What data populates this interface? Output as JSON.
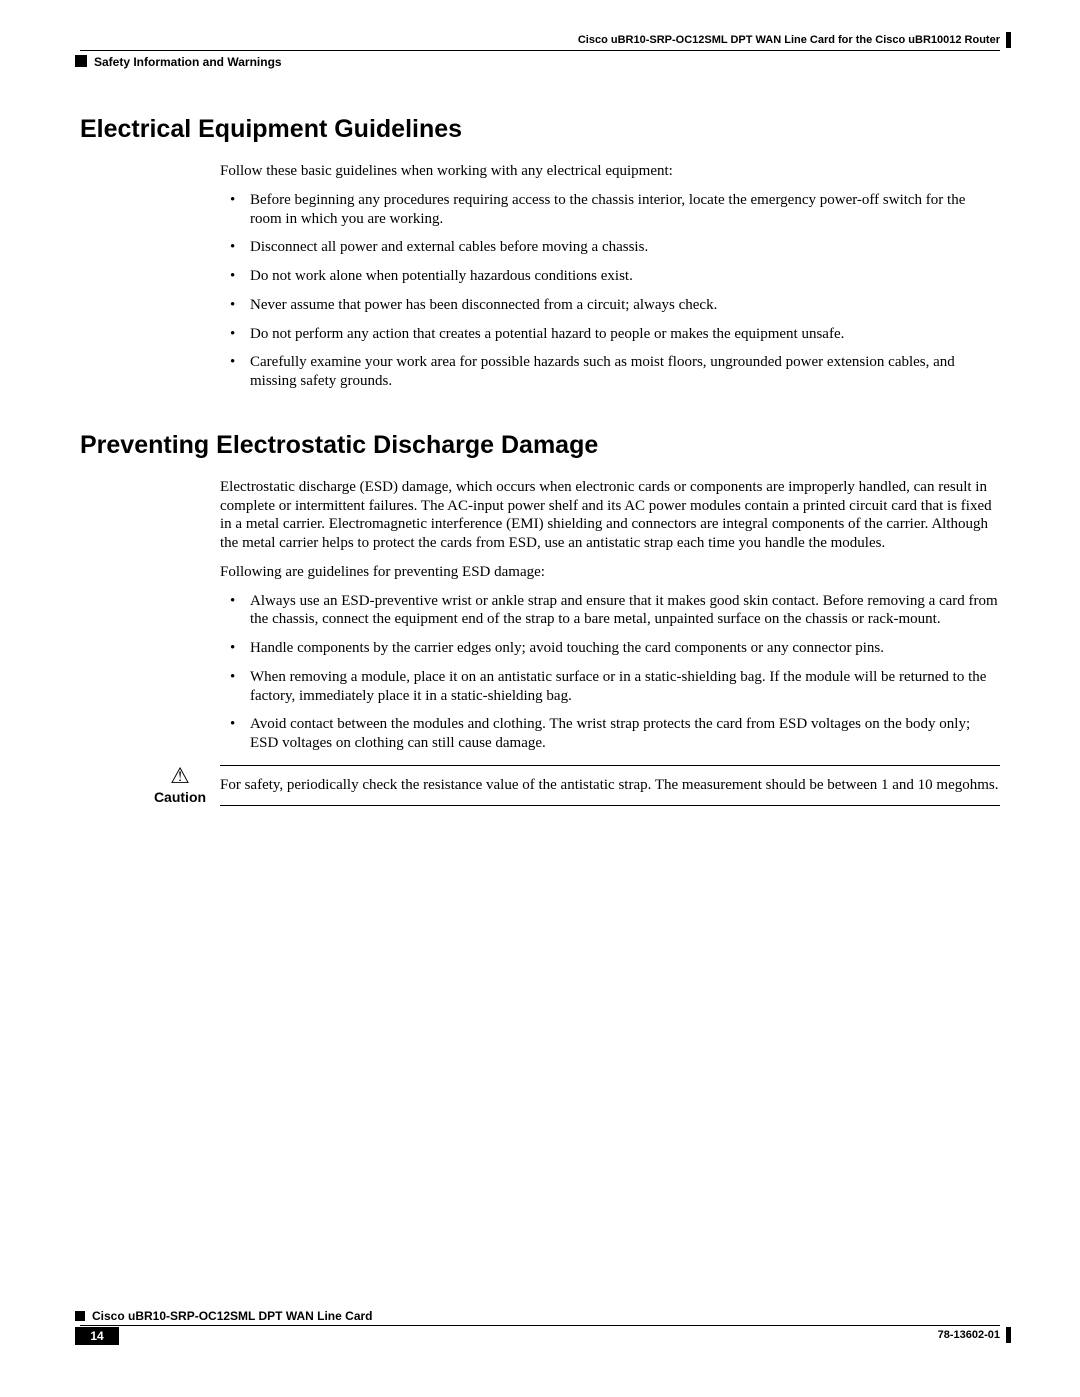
{
  "header": {
    "doc_title": "Cisco uBR10-SRP-OC12SML DPT WAN Line Card for the Cisco uBR10012 Router",
    "section_label": "Safety Information and Warnings"
  },
  "sections": {
    "s1": {
      "heading": "Electrical Equipment Guidelines",
      "intro": "Follow these basic guidelines when working with any electrical equipment:",
      "bullets": [
        "Before beginning any procedures requiring access to the chassis interior, locate the emergency power-off switch for the room in which you are working.",
        "Disconnect all power and external cables before moving a chassis.",
        "Do not work alone when potentially hazardous conditions exist.",
        "Never assume that power has been disconnected from a circuit; always check.",
        "Do not perform any action that creates a potential hazard to people or makes the equipment unsafe.",
        "Carefully examine your work area for possible hazards such as moist floors, ungrounded power extension cables, and missing safety grounds."
      ]
    },
    "s2": {
      "heading": "Preventing Electrostatic Discharge Damage",
      "p1": "Electrostatic discharge (ESD) damage, which occurs when electronic cards or components are improperly handled, can result in complete or intermittent failures. The AC-input power shelf and its AC power modules contain a printed circuit card that is fixed in a metal carrier. Electromagnetic interference (EMI) shielding and connectors are integral components of the carrier. Although the metal carrier helps to protect the cards from ESD, use an antistatic strap each time you handle the modules.",
      "p2": "Following are guidelines for preventing ESD damage:",
      "bullets": [
        "Always use an ESD-preventive wrist or ankle strap and ensure that it makes good skin contact. Before removing a card from the chassis, connect the equipment end of the strap to a bare metal, unpainted surface on the chassis or rack-mount.",
        "Handle components by the carrier edges only; avoid touching the card components or any connector pins.",
        "When removing a module, place it on an antistatic surface or in a static-shielding bag. If the module will be returned to the factory, immediately place it in a static-shielding bag.",
        "Avoid contact between the modules and clothing. The wrist strap protects the card from ESD voltages on the body only; ESD voltages on clothing can still cause damage."
      ]
    },
    "caution": {
      "icon": "⚠",
      "label": "Caution",
      "text": "For safety, periodically check the resistance value of the antistatic strap. The measurement should be between 1 and 10 megohms."
    }
  },
  "footer": {
    "book_title": "Cisco uBR10-SRP-OC12SML DPT WAN Line Card",
    "page": "14",
    "doc_id": "78-13602-01"
  }
}
